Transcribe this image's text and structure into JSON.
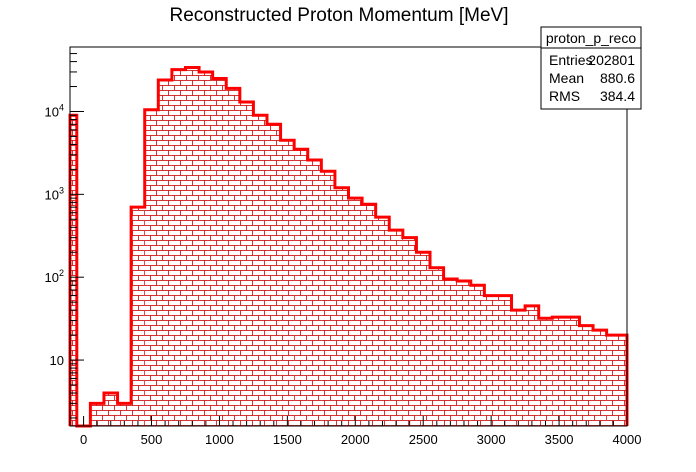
{
  "chart_data": {
    "type": "bar",
    "title": "Reconstructed Proton Momentum [MeV]",
    "xlabel": "",
    "ylabel": "",
    "xlim": [
      -100,
      4000
    ],
    "ylim": [
      1.6,
      60000
    ],
    "y_scale": "log",
    "bin_width": 100,
    "bin_edges_start": -100,
    "line_color": "#ff0000",
    "fill_pattern": "red brick hatch",
    "x_ticks": [
      "0",
      "500",
      "1000",
      "1500",
      "2000",
      "2500",
      "3000",
      "3500",
      "4000"
    ],
    "y_ticks": [
      {
        "value": 10,
        "base": "10",
        "exp": ""
      },
      {
        "value": 100,
        "base": "10",
        "exp": "2"
      },
      {
        "value": 1000,
        "base": "10",
        "exp": "3"
      },
      {
        "value": 10000,
        "base": "10",
        "exp": "4"
      }
    ],
    "bins": [
      {
        "x0": -100,
        "x1": -50,
        "value": 9000
      },
      {
        "x0": -50,
        "x1": 0,
        "value": 1.0
      },
      {
        "x0": 0,
        "x1": 50,
        "value": 1.0
      },
      {
        "x0": 50,
        "x1": 150,
        "value": 3
      },
      {
        "x0": 150,
        "x1": 250,
        "value": 4
      },
      {
        "x0": 250,
        "x1": 350,
        "value": 3
      },
      {
        "x0": 350,
        "x1": 450,
        "value": 700
      },
      {
        "x0": 450,
        "x1": 550,
        "value": 10500
      },
      {
        "x0": 550,
        "x1": 650,
        "value": 24000
      },
      {
        "x0": 650,
        "x1": 750,
        "value": 32000
      },
      {
        "x0": 750,
        "x1": 850,
        "value": 34000
      },
      {
        "x0": 850,
        "x1": 950,
        "value": 30000
      },
      {
        "x0": 950,
        "x1": 1050,
        "value": 25000
      },
      {
        "x0": 1050,
        "x1": 1150,
        "value": 19000
      },
      {
        "x0": 1150,
        "x1": 1250,
        "value": 13000
      },
      {
        "x0": 1250,
        "x1": 1350,
        "value": 9000
      },
      {
        "x0": 1350,
        "x1": 1450,
        "value": 7000
      },
      {
        "x0": 1450,
        "x1": 1550,
        "value": 4500
      },
      {
        "x0": 1550,
        "x1": 1650,
        "value": 3500
      },
      {
        "x0": 1650,
        "x1": 1750,
        "value": 2600
      },
      {
        "x0": 1750,
        "x1": 1850,
        "value": 1900
      },
      {
        "x0": 1850,
        "x1": 1950,
        "value": 1200
      },
      {
        "x0": 1950,
        "x1": 2050,
        "value": 900
      },
      {
        "x0": 2050,
        "x1": 2150,
        "value": 760
      },
      {
        "x0": 2150,
        "x1": 2250,
        "value": 530
      },
      {
        "x0": 2250,
        "x1": 2350,
        "value": 370
      },
      {
        "x0": 2350,
        "x1": 2450,
        "value": 300
      },
      {
        "x0": 2450,
        "x1": 2550,
        "value": 200
      },
      {
        "x0": 2550,
        "x1": 2650,
        "value": 130
      },
      {
        "x0": 2650,
        "x1": 2750,
        "value": 95
      },
      {
        "x0": 2750,
        "x1": 2850,
        "value": 90
      },
      {
        "x0": 2850,
        "x1": 2950,
        "value": 80
      },
      {
        "x0": 2950,
        "x1": 3050,
        "value": 60
      },
      {
        "x0": 3050,
        "x1": 3150,
        "value": 60
      },
      {
        "x0": 3150,
        "x1": 3250,
        "value": 40
      },
      {
        "x0": 3250,
        "x1": 3350,
        "value": 45
      },
      {
        "x0": 3350,
        "x1": 3450,
        "value": 32
      },
      {
        "x0": 3450,
        "x1": 3550,
        "value": 33
      },
      {
        "x0": 3550,
        "x1": 3650,
        "value": 33
      },
      {
        "x0": 3650,
        "x1": 3750,
        "value": 26
      },
      {
        "x0": 3750,
        "x1": 3850,
        "value": 23
      },
      {
        "x0": 3850,
        "x1": 4000,
        "value": 20
      }
    ]
  },
  "stats_box": {
    "name": "proton_p_reco",
    "rows": [
      {
        "label": "Entries",
        "value": "202801"
      },
      {
        "label": "Mean",
        "value": "880.6"
      },
      {
        "label": "RMS",
        "value": "384.4"
      }
    ]
  }
}
